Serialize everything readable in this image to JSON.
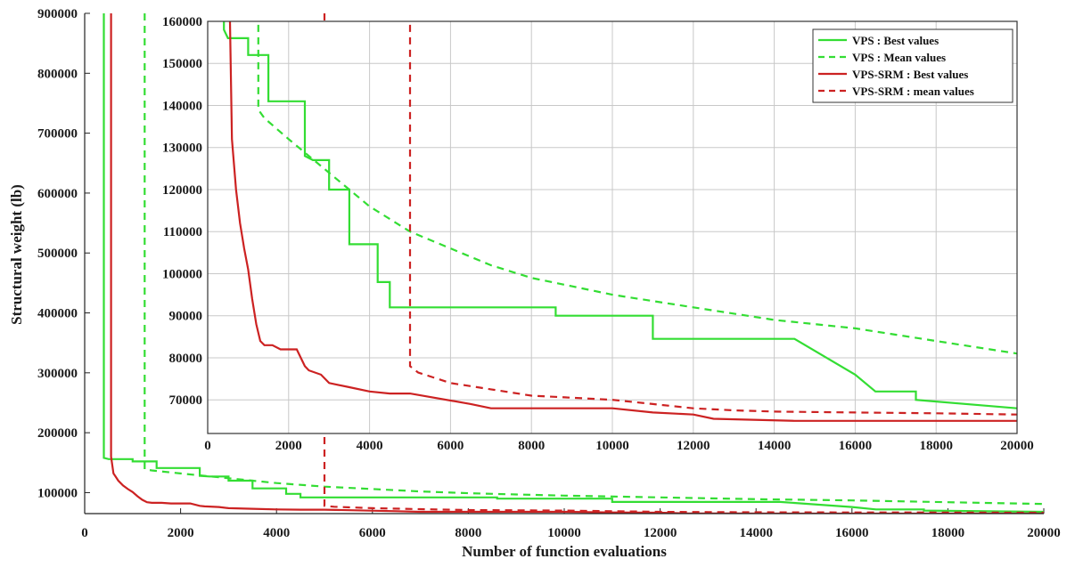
{
  "chart_data": [
    {
      "id": "main",
      "type": "line",
      "xlabel": "Number of function evaluations",
      "ylabel": "Structural weight (lb)",
      "xlim": [
        0,
        20000
      ],
      "ylim": [
        65000,
        900000
      ],
      "xticks": [
        0,
        2000,
        4000,
        6000,
        8000,
        10000,
        12000,
        14000,
        16000,
        18000,
        20000
      ],
      "yticks": [
        100000,
        200000,
        300000,
        400000,
        500000,
        600000,
        700000,
        800000,
        900000
      ],
      "grid": false,
      "series": [
        {
          "name": "VPS : Best values",
          "color": "#33dd33",
          "dash": "solid",
          "x": [
            400,
            400,
            500,
            1000,
            1000,
            1500,
            1500,
            2400,
            2400,
            2600,
            3000,
            3000,
            3500,
            3500,
            4200,
            4200,
            4500,
            4500,
            8600,
            8600,
            11000,
            11000,
            14500,
            16000,
            16500,
            17500,
            17500,
            20000
          ],
          "y": [
            900000,
            158000,
            156000,
            156000,
            152000,
            152000,
            141000,
            141000,
            128000,
            127000,
            127000,
            120000,
            120000,
            107000,
            107000,
            98000,
            98000,
            92000,
            92000,
            90000,
            90000,
            84500,
            84500,
            76000,
            72000,
            72000,
            70000,
            68000
          ]
        },
        {
          "name": "VPS : Mean values",
          "color": "#33dd33",
          "dash": "8,6",
          "x": [
            1250,
            1250,
            1400,
            2000,
            3000,
            4000,
            5000,
            6000,
            7000,
            8000,
            9000,
            10000,
            12000,
            14000,
            16000,
            18000,
            20000
          ],
          "y": [
            900000,
            139000,
            137000,
            132000,
            124000,
            116000,
            110000,
            106000,
            102000,
            99000,
            97000,
            95000,
            92000,
            89000,
            87000,
            84000,
            81000
          ]
        },
        {
          "name": "VPS-SRM : Best values",
          "color": "#cc2222",
          "dash": "solid",
          "x": [
            550,
            550,
            600,
            650,
            700,
            800,
            900,
            1000,
            1100,
            1200,
            1300,
            1400,
            1600,
            1800,
            2200,
            2400,
            2500,
            2800,
            3000,
            3500,
            4000,
            4500,
            5000,
            6500,
            7000,
            8000,
            10000,
            11000,
            12000,
            12500,
            14500,
            20000
          ],
          "y": [
            900000,
            160000,
            132000,
            126000,
            120000,
            112000,
            106000,
            101000,
            94000,
            88000,
            84000,
            83000,
            83000,
            82000,
            82000,
            78000,
            77000,
            76000,
            74000,
            73000,
            72000,
            71500,
            71500,
            69000,
            68000,
            68000,
            68000,
            67000,
            66500,
            65500,
            65000,
            65000
          ]
        },
        {
          "name": "VPS-SRM : mean values",
          "color": "#cc2222",
          "dash": "8,6",
          "x": [
            5000,
            5000,
            5200,
            6000,
            7000,
            8000,
            9000,
            10000,
            11000,
            12000,
            13000,
            14000,
            16000,
            18000,
            20000
          ],
          "y": [
            900000,
            78000,
            76500,
            74000,
            72500,
            71000,
            70500,
            70000,
            69000,
            68000,
            67500,
            67200,
            67000,
            66800,
            66500
          ]
        }
      ]
    },
    {
      "id": "inset",
      "type": "line",
      "xlabel": "",
      "ylabel": "",
      "xlim": [
        0,
        20000
      ],
      "ylim": [
        62000,
        160000
      ],
      "xticks": [
        0,
        2000,
        4000,
        6000,
        8000,
        10000,
        12000,
        14000,
        16000,
        18000,
        20000
      ],
      "yticks": [
        70000,
        80000,
        90000,
        100000,
        110000,
        120000,
        130000,
        140000,
        150000,
        160000
      ],
      "grid": true,
      "legend_position": "top-right",
      "series_ref": "main"
    }
  ],
  "legend": [
    {
      "label": "VPS : Best values",
      "color": "#33dd33",
      "dash": "solid"
    },
    {
      "label": "VPS : Mean values",
      "color": "#33dd33",
      "dash": "8,6"
    },
    {
      "label": "VPS-SRM : Best values",
      "color": "#cc2222",
      "dash": "solid"
    },
    {
      "label": "VPS-SRM : mean values",
      "color": "#cc2222",
      "dash": "8,6"
    }
  ]
}
